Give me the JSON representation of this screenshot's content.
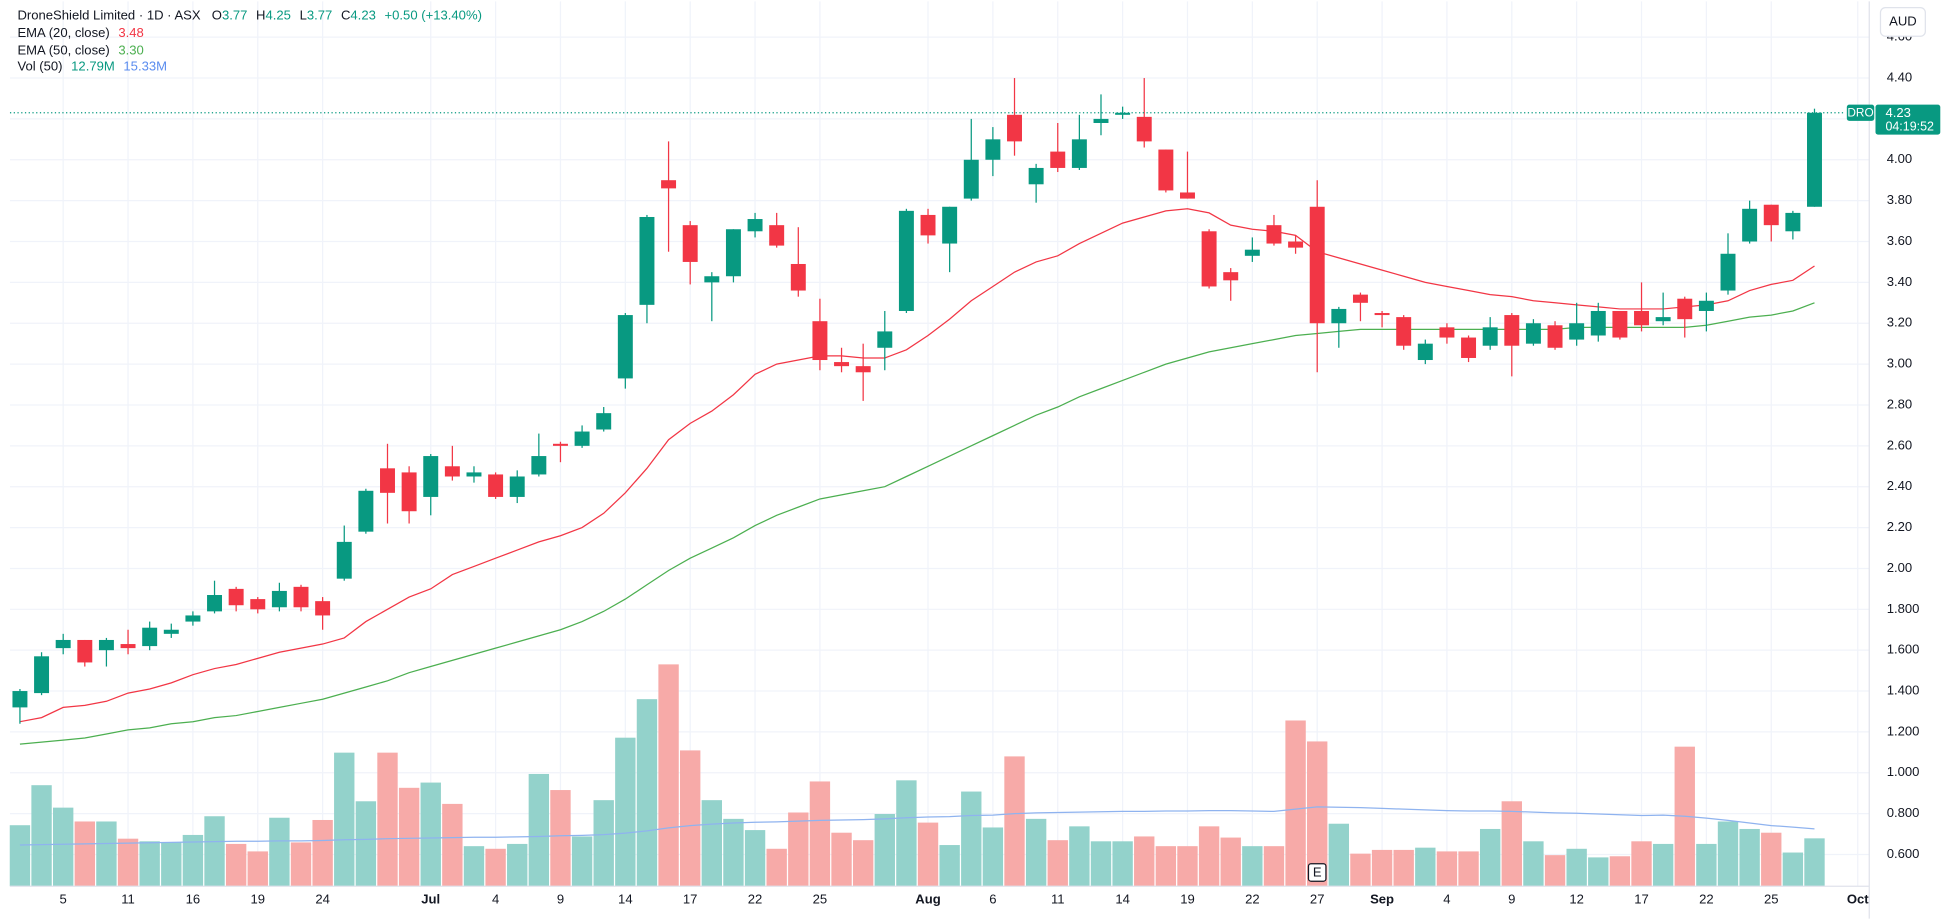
{
  "chart_data": {
    "type": "candlestick",
    "title": "DroneShield Limited · 1D · ASX",
    "currency": "AUD",
    "symbol_label": "DRO",
    "countdown": "04:19:52",
    "earnings_marker": {
      "label": "E",
      "index": 60
    },
    "ohlc_labels": [
      "O",
      "H",
      "L",
      "C"
    ],
    "legend": {
      "open": "3.77",
      "high": "4.25",
      "low": "3.77",
      "close": "4.23",
      "change": "+0.50 (+13.40%)",
      "ema20": "3.48",
      "ema50": "3.30",
      "volume": "12.79M",
      "volume_ma": "15.33M"
    },
    "up_color": "#089981",
    "down_color": "#f23645",
    "volume_up_color": "#93d2cb",
    "volume_down_color": "#f7aaa8",
    "grid": true,
    "categories": [
      null,
      null,
      "5",
      null,
      null,
      "11",
      null,
      null,
      "16",
      null,
      null,
      "19",
      null,
      null,
      "24",
      null,
      null,
      null,
      null,
      "Jul",
      null,
      null,
      "4",
      null,
      null,
      "9",
      null,
      null,
      "14",
      null,
      null,
      "17",
      null,
      null,
      "22",
      null,
      null,
      "25",
      null,
      null,
      null,
      null,
      "Aug",
      null,
      null,
      "6",
      null,
      null,
      "11",
      null,
      null,
      "14",
      null,
      null,
      "19",
      null,
      null,
      "22",
      null,
      null,
      "27",
      null,
      null,
      "Sep",
      null,
      null,
      "4",
      null,
      null,
      "9",
      null,
      null,
      "12",
      null,
      null,
      "17",
      null,
      null,
      "22",
      null,
      null,
      "25",
      null,
      null
    ],
    "next_period_label": "Oct",
    "open": [
      1.32,
      1.39,
      1.61,
      1.65,
      1.6,
      1.63,
      1.62,
      1.68,
      1.74,
      1.79,
      1.9,
      1.85,
      1.81,
      1.91,
      1.84,
      1.95,
      2.18,
      2.49,
      2.47,
      2.35,
      2.5,
      2.45,
      2.46,
      2.35,
      2.46,
      2.61,
      2.6,
      2.68,
      2.93,
      3.29,
      3.9,
      3.68,
      3.4,
      3.43,
      3.65,
      3.68,
      3.49,
      3.21,
      3.01,
      2.99,
      3.08,
      3.26,
      3.73,
      3.59,
      3.81,
      4.0,
      4.22,
      3.88,
      4.04,
      3.96,
      4.18,
      4.22,
      4.21,
      4.05,
      3.84,
      3.65,
      3.45,
      3.53,
      3.68,
      3.6,
      3.77,
      3.2,
      3.34,
      3.25,
      3.23,
      3.02,
      3.18,
      3.13,
      3.09,
      3.24,
      3.1,
      3.19,
      3.12,
      3.14,
      3.26,
      3.26,
      3.21,
      3.32,
      3.26,
      3.36,
      3.6,
      3.78,
      3.65,
      3.77
    ],
    "high": [
      1.41,
      1.59,
      1.68,
      1.65,
      1.66,
      1.7,
      1.74,
      1.73,
      1.79,
      1.94,
      1.91,
      1.86,
      1.93,
      1.92,
      1.86,
      2.21,
      2.39,
      2.61,
      2.5,
      2.56,
      2.6,
      2.5,
      2.47,
      2.48,
      2.66,
      2.62,
      2.7,
      2.79,
      3.25,
      3.73,
      4.09,
      3.7,
      3.45,
      3.66,
      3.74,
      3.74,
      3.67,
      3.32,
      3.08,
      3.1,
      3.26,
      3.76,
      3.76,
      3.77,
      4.2,
      4.16,
      4.4,
      3.98,
      4.18,
      4.22,
      4.32,
      4.26,
      4.4,
      4.05,
      4.04,
      3.66,
      3.47,
      3.62,
      3.73,
      3.63,
      3.9,
      3.28,
      3.35,
      3.26,
      3.24,
      3.12,
      3.2,
      3.14,
      3.23,
      3.25,
      3.22,
      3.21,
      3.3,
      3.3,
      3.26,
      3.4,
      3.35,
      3.33,
      3.35,
      3.64,
      3.8,
      3.78,
      3.75,
      4.25
    ],
    "low": [
      1.24,
      1.38,
      1.58,
      1.52,
      1.52,
      1.58,
      1.6,
      1.66,
      1.72,
      1.78,
      1.79,
      1.78,
      1.79,
      1.79,
      1.7,
      1.94,
      2.17,
      2.22,
      2.22,
      2.26,
      2.43,
      2.42,
      2.34,
      2.32,
      2.45,
      2.52,
      2.59,
      2.67,
      2.88,
      3.2,
      3.55,
      3.39,
      3.21,
      3.4,
      3.62,
      3.57,
      3.33,
      2.97,
      2.96,
      2.82,
      2.97,
      3.25,
      3.59,
      3.45,
      3.8,
      3.92,
      4.02,
      3.79,
      3.94,
      3.95,
      4.12,
      4.2,
      4.06,
      3.84,
      3.81,
      3.37,
      3.31,
      3.5,
      3.58,
      3.54,
      2.96,
      3.08,
      3.21,
      3.18,
      3.07,
      3.0,
      3.1,
      3.01,
      3.07,
      2.94,
      3.09,
      3.07,
      3.09,
      3.11,
      3.12,
      3.16,
      3.19,
      3.13,
      3.16,
      3.34,
      3.59,
      3.6,
      3.61,
      3.77
    ],
    "close": [
      1.4,
      1.57,
      1.65,
      1.54,
      1.65,
      1.61,
      1.71,
      1.7,
      1.77,
      1.87,
      1.82,
      1.8,
      1.89,
      1.81,
      1.77,
      2.13,
      2.38,
      2.37,
      2.28,
      2.55,
      2.45,
      2.47,
      2.35,
      2.45,
      2.55,
      2.6,
      2.67,
      2.76,
      3.24,
      3.72,
      3.86,
      3.5,
      3.43,
      3.66,
      3.71,
      3.58,
      3.36,
      3.02,
      2.99,
      2.96,
      3.16,
      3.75,
      3.63,
      3.77,
      4.0,
      4.1,
      4.09,
      3.96,
      3.96,
      4.1,
      4.2,
      4.23,
      4.09,
      3.85,
      3.81,
      3.38,
      3.41,
      3.56,
      3.59,
      3.57,
      3.2,
      3.27,
      3.3,
      3.24,
      3.09,
      3.1,
      3.13,
      3.03,
      3.18,
      3.09,
      3.2,
      3.08,
      3.2,
      3.26,
      3.13,
      3.19,
      3.23,
      3.22,
      3.31,
      3.54,
      3.76,
      3.68,
      3.74,
      4.23
    ],
    "volume": [
      16.3,
      27.0,
      21.0,
      17.3,
      17.3,
      12.7,
      12.0,
      11.7,
      13.7,
      18.7,
      11.3,
      9.3,
      18.3,
      11.7,
      17.7,
      35.7,
      22.7,
      35.7,
      26.3,
      27.7,
      22.0,
      10.7,
      10.0,
      11.3,
      30.0,
      25.7,
      13.3,
      23.0,
      39.7,
      50.0,
      59.3,
      36.3,
      23.0,
      18.0,
      15.0,
      10.0,
      19.7,
      28.0,
      14.3,
      12.3,
      19.3,
      28.3,
      17.0,
      11.0,
      25.3,
      15.7,
      34.7,
      18.0,
      12.3,
      16.0,
      12.0,
      12.0,
      13.3,
      10.7,
      10.7,
      16.0,
      13.0,
      10.7,
      10.7,
      44.3,
      38.7,
      16.7,
      8.7,
      9.7,
      9.7,
      10.3,
      9.3,
      9.3,
      15.3,
      22.7,
      12.0,
      8.3,
      10.0,
      7.7,
      8.0,
      12.0,
      11.3,
      37.3,
      11.3,
      17.3,
      15.3,
      14.3,
      9.0,
      12.79
    ],
    "series": [
      {
        "name": "EMA (20, close)",
        "color": "#f23645",
        "values": [
          1.25,
          1.27,
          1.32,
          1.33,
          1.35,
          1.39,
          1.41,
          1.44,
          1.48,
          1.51,
          1.53,
          1.56,
          1.59,
          1.61,
          1.63,
          1.66,
          1.74,
          1.8,
          1.86,
          1.9,
          1.97,
          2.01,
          2.05,
          2.09,
          2.13,
          2.16,
          2.2,
          2.27,
          2.37,
          2.49,
          2.63,
          2.71,
          2.77,
          2.85,
          2.95,
          3.0,
          3.02,
          3.04,
          3.04,
          3.03,
          3.03,
          3.07,
          3.14,
          3.22,
          3.31,
          3.38,
          3.45,
          3.5,
          3.53,
          3.59,
          3.64,
          3.69,
          3.72,
          3.75,
          3.76,
          3.74,
          3.68,
          3.66,
          3.65,
          3.63,
          3.55,
          3.52,
          3.49,
          3.46,
          3.43,
          3.4,
          3.38,
          3.36,
          3.34,
          3.33,
          3.31,
          3.3,
          3.29,
          3.28,
          3.27,
          3.27,
          3.27,
          3.28,
          3.29,
          3.31,
          3.36,
          3.39,
          3.41,
          3.48
        ]
      },
      {
        "name": "EMA (50, close)",
        "color": "#4caf50",
        "values": [
          1.14,
          1.15,
          1.16,
          1.17,
          1.19,
          1.21,
          1.22,
          1.24,
          1.25,
          1.27,
          1.28,
          1.3,
          1.32,
          1.34,
          1.36,
          1.39,
          1.42,
          1.45,
          1.49,
          1.52,
          1.55,
          1.58,
          1.61,
          1.64,
          1.67,
          1.7,
          1.74,
          1.79,
          1.85,
          1.92,
          1.99,
          2.05,
          2.1,
          2.15,
          2.21,
          2.26,
          2.3,
          2.34,
          2.36,
          2.38,
          2.4,
          2.45,
          2.5,
          2.55,
          2.6,
          2.65,
          2.7,
          2.75,
          2.79,
          2.84,
          2.88,
          2.92,
          2.96,
          3.0,
          3.03,
          3.06,
          3.08,
          3.1,
          3.12,
          3.14,
          3.15,
          3.16,
          3.17,
          3.17,
          3.17,
          3.17,
          3.17,
          3.17,
          3.17,
          3.17,
          3.17,
          3.17,
          3.18,
          3.18,
          3.18,
          3.18,
          3.18,
          3.18,
          3.19,
          3.21,
          3.23,
          3.24,
          3.26,
          3.3
        ]
      },
      {
        "name": "Vol (50)",
        "color": "#8fb3ef",
        "axis": "volume",
        "values": [
          11.0,
          11.1,
          11.2,
          11.3,
          11.4,
          11.5,
          11.6,
          11.7,
          11.8,
          11.9,
          12.0,
          12.0,
          12.1,
          12.1,
          12.2,
          12.4,
          12.5,
          12.7,
          12.8,
          12.9,
          13.0,
          13.1,
          13.1,
          13.2,
          13.3,
          13.5,
          13.6,
          13.8,
          14.2,
          14.8,
          15.6,
          16.2,
          16.6,
          16.9,
          17.1,
          17.2,
          17.4,
          17.6,
          17.7,
          17.8,
          18.0,
          18.3,
          18.5,
          18.6,
          18.9,
          19.0,
          19.4,
          19.6,
          19.7,
          19.8,
          19.9,
          20.0,
          20.0,
          20.1,
          20.1,
          20.2,
          20.2,
          20.1,
          20.0,
          20.6,
          21.2,
          21.1,
          21.0,
          20.8,
          20.6,
          20.4,
          20.2,
          20.1,
          20.1,
          20.0,
          19.8,
          19.6,
          19.5,
          19.3,
          19.1,
          18.9,
          19.0,
          18.7,
          18.2,
          17.6,
          16.9,
          16.2,
          15.8,
          15.33
        ]
      }
    ],
    "ylim": [
      0.445,
      4.775
    ],
    "yticks": [
      {
        "value": 0.6,
        "label": "0.600"
      },
      {
        "value": 0.8,
        "label": "0.800"
      },
      {
        "value": 1,
        "label": "1.000"
      },
      {
        "value": 1.2,
        "label": "1.200"
      },
      {
        "value": 1.4,
        "label": "1.400"
      },
      {
        "value": 1.6,
        "label": "1.600"
      },
      {
        "value": 1.8,
        "label": "1.800"
      },
      {
        "value": 2,
        "label": "2.00"
      },
      {
        "value": 2.2,
        "label": "2.20"
      },
      {
        "value": 2.4,
        "label": "2.40"
      },
      {
        "value": 2.6,
        "label": "2.60"
      },
      {
        "value": 2.8,
        "label": "2.80"
      },
      {
        "value": 3,
        "label": "3.00"
      },
      {
        "value": 3.2,
        "label": "3.20"
      },
      {
        "value": 3.4,
        "label": "3.40"
      },
      {
        "value": 3.6,
        "label": "3.60"
      },
      {
        "value": 3.8,
        "label": "3.80"
      },
      {
        "value": 4,
        "label": "4.00"
      },
      {
        "value": 4.2,
        "label": "4.20"
      },
      {
        "value": 4.4,
        "label": "4.40"
      },
      {
        "value": 4.6,
        "label": "4.60"
      }
    ]
  }
}
